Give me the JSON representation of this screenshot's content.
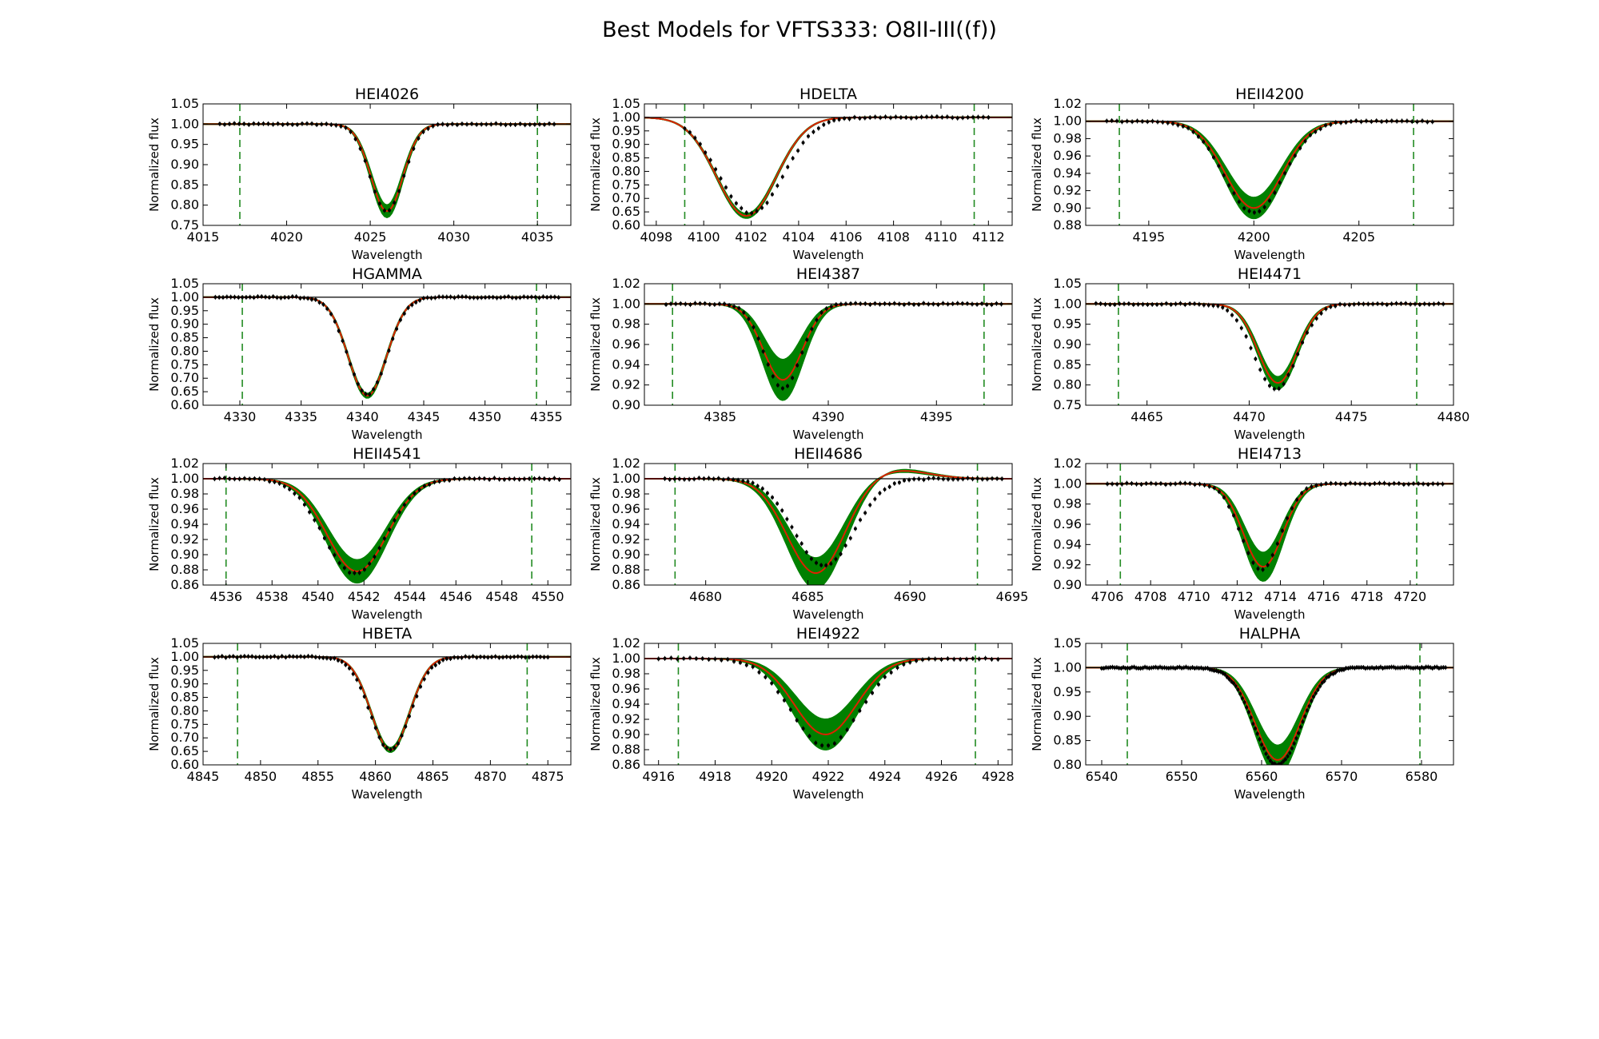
{
  "figure": {
    "title": "Best Models for VFTS333: O8II-III((f))"
  },
  "colors": {
    "data": "#000000",
    "model_band": "#008000",
    "best_model": "#dd2200",
    "window": "#228b22",
    "continuum": "#000000"
  },
  "chart_data": [
    {
      "type": "line",
      "title": "HEI4026",
      "xlabel": "Wavelength",
      "ylabel": "Normalized flux",
      "xlim": [
        4015,
        4037
      ],
      "ylim": [
        0.75,
        1.05
      ],
      "xticks": [
        4015,
        4020,
        4025,
        4030,
        4035
      ],
      "xtick_labels": [
        "4015",
        "4020",
        "4025",
        "4030",
        "4035"
      ],
      "yticks": [
        0.75,
        0.8,
        0.85,
        0.9,
        0.95,
        1.0,
        1.05
      ],
      "ytick_labels": [
        "0.75",
        "0.80",
        "0.85",
        "0.90",
        "0.95",
        "1.00",
        "1.05"
      ],
      "window": [
        4017.2,
        4035.0
      ],
      "line": {
        "center": 4026.0,
        "depth": 0.215,
        "sigma": 0.95,
        "band": 0.015
      },
      "observed": {
        "x_range": [
          4016,
          4036
        ],
        "n": 70,
        "center": 4026.0,
        "depth": 0.215,
        "sigma": 1.0
      }
    },
    {
      "type": "line",
      "title": "HDELTA",
      "xlabel": "Wavelength",
      "ylabel": "Normalized flux",
      "xlim": [
        4097.5,
        4113
      ],
      "ylim": [
        0.6,
        1.05
      ],
      "xticks": [
        4098,
        4100,
        4102,
        4104,
        4106,
        4108,
        4110,
        4112
      ],
      "xtick_labels": [
        "4098",
        "4100",
        "4102",
        "4104",
        "4106",
        "4108",
        "4110",
        "4112"
      ],
      "yticks": [
        0.6,
        0.65,
        0.7,
        0.75,
        0.8,
        0.85,
        0.9,
        0.95,
        1.0,
        1.05
      ],
      "ytick_labels": [
        "0.60",
        "0.65",
        "0.70",
        "0.75",
        "0.80",
        "0.85",
        "0.90",
        "0.95",
        "1.00",
        "1.05"
      ],
      "window": [
        4099.2,
        4111.4
      ],
      "line": {
        "center": 4101.8,
        "depth": 0.365,
        "sigma": 1.25,
        "band": 0.008
      },
      "observed": {
        "x_range": [
          4099.2,
          4112
        ],
        "n": 60,
        "center": 4102.0,
        "depth": 0.355,
        "sigma": 1.35
      }
    },
    {
      "type": "line",
      "title": "HEII4200",
      "xlabel": "Wavelength",
      "ylabel": "Normalized flux",
      "xlim": [
        4192,
        4209.5
      ],
      "ylim": [
        0.88,
        1.02
      ],
      "xticks": [
        4195,
        4200,
        4205
      ],
      "xtick_labels": [
        "4195",
        "4200",
        "4205"
      ],
      "yticks": [
        0.88,
        0.9,
        0.92,
        0.94,
        0.96,
        0.98,
        1.0,
        1.02
      ],
      "ytick_labels": [
        "0.88",
        "0.90",
        "0.92",
        "0.94",
        "0.96",
        "0.98",
        "1.00",
        "1.02"
      ],
      "window": [
        4193.6,
        4207.6
      ],
      "line": {
        "center": 4200.0,
        "depth": 0.1,
        "sigma": 1.35,
        "band": 0.012
      },
      "observed": {
        "x_range": [
          4193,
          4208.5
        ],
        "n": 65,
        "center": 4200.0,
        "depth": 0.105,
        "sigma": 1.4
      }
    },
    {
      "type": "line",
      "title": "HGAMMA",
      "xlabel": "Wavelength",
      "ylabel": "Normalized flux",
      "xlim": [
        4327,
        4357
      ],
      "ylim": [
        0.6,
        1.05
      ],
      "xticks": [
        4330,
        4335,
        4340,
        4345,
        4350,
        4355
      ],
      "xtick_labels": [
        "4330",
        "4335",
        "4340",
        "4345",
        "4350",
        "4355"
      ],
      "yticks": [
        0.6,
        0.65,
        0.7,
        0.75,
        0.8,
        0.85,
        0.9,
        0.95,
        1.0,
        1.05
      ],
      "ytick_labels": [
        "0.60",
        "0.65",
        "0.70",
        "0.75",
        "0.80",
        "0.85",
        "0.90",
        "0.95",
        "1.00",
        "1.05"
      ],
      "window": [
        4330.2,
        4354.2
      ],
      "line": {
        "center": 4340.4,
        "depth": 0.365,
        "sigma": 1.55,
        "band": 0.008
      },
      "observed": {
        "x_range": [
          4328,
          4356
        ],
        "n": 90,
        "center": 4340.4,
        "depth": 0.36,
        "sigma": 1.6
      }
    },
    {
      "type": "line",
      "title": "HEI4387",
      "xlabel": "Wavelength",
      "ylabel": "Normalized flux",
      "xlim": [
        4381.5,
        4398.5
      ],
      "ylim": [
        0.9,
        1.02
      ],
      "xticks": [
        4385,
        4390,
        4395
      ],
      "xtick_labels": [
        "4385",
        "4390",
        "4395"
      ],
      "yticks": [
        0.9,
        0.92,
        0.94,
        0.96,
        0.98,
        1.0,
        1.02
      ],
      "ytick_labels": [
        "0.90",
        "0.92",
        "0.94",
        "0.96",
        "0.98",
        "1.00",
        "1.02"
      ],
      "window": [
        4382.8,
        4397.2
      ],
      "line": {
        "center": 4387.9,
        "depth": 0.075,
        "sigma": 0.9,
        "band": 0.02
      },
      "observed": {
        "x_range": [
          4382.5,
          4398
        ],
        "n": 70,
        "center": 4387.9,
        "depth": 0.083,
        "sigma": 0.85
      }
    },
    {
      "type": "line",
      "title": "HEI4471",
      "xlabel": "Wavelength",
      "ylabel": "Normalized flux",
      "xlim": [
        4462,
        4480
      ],
      "ylim": [
        0.75,
        1.05
      ],
      "xticks": [
        4465,
        4470,
        4475,
        4480
      ],
      "xtick_labels": [
        "4465",
        "4470",
        "4475",
        "4480"
      ],
      "yticks": [
        0.75,
        0.8,
        0.85,
        0.9,
        0.95,
        1.0,
        1.05
      ],
      "ytick_labels": [
        "0.75",
        "0.80",
        "0.85",
        "0.90",
        "0.95",
        "1.00",
        "1.05"
      ],
      "window": [
        4463.6,
        4478.2
      ],
      "line": {
        "center": 4471.4,
        "depth": 0.195,
        "sigma": 0.95,
        "band": 0.015
      },
      "observed": {
        "x_range": [
          4462.5,
          4479.5
        ],
        "n": 75,
        "center": 4471.3,
        "depth": 0.21,
        "sigma": 1.05
      }
    },
    {
      "type": "line",
      "title": "HEII4541",
      "xlabel": "Wavelength",
      "ylabel": "Normalized flux",
      "xlim": [
        4535,
        4551
      ],
      "ylim": [
        0.86,
        1.02
      ],
      "xticks": [
        4536,
        4538,
        4540,
        4542,
        4544,
        4546,
        4548,
        4550
      ],
      "xtick_labels": [
        "4536",
        "4538",
        "4540",
        "4542",
        "4544",
        "4546",
        "4548",
        "4550"
      ],
      "yticks": [
        0.86,
        0.88,
        0.9,
        0.92,
        0.94,
        0.96,
        0.98,
        1.0,
        1.02
      ],
      "ytick_labels": [
        "0.86",
        "0.88",
        "0.90",
        "0.92",
        "0.94",
        "0.96",
        "0.98",
        "1.00",
        "1.02"
      ],
      "window": [
        4536.0,
        4549.3
      ],
      "line": {
        "center": 4541.7,
        "depth": 0.122,
        "sigma": 1.3,
        "band": 0.015
      },
      "observed": {
        "x_range": [
          4535.5,
          4550.5
        ],
        "n": 70,
        "center": 4541.6,
        "depth": 0.125,
        "sigma": 1.35
      }
    },
    {
      "type": "line",
      "title": "HEII4686",
      "xlabel": "Wavelength",
      "ylabel": "Normalized flux",
      "xlim": [
        4677,
        4695
      ],
      "ylim": [
        0.86,
        1.02
      ],
      "xticks": [
        4680,
        4685,
        4690,
        4695
      ],
      "xtick_labels": [
        "4680",
        "4685",
        "4690",
        "4695"
      ],
      "yticks": [
        0.86,
        0.88,
        0.9,
        0.92,
        0.94,
        0.96,
        0.98,
        1.0,
        1.02
      ],
      "ytick_labels": [
        "0.86",
        "0.88",
        "0.90",
        "0.92",
        "0.94",
        "0.96",
        "0.98",
        "1.00",
        "1.02"
      ],
      "window": [
        4678.5,
        4693.3
      ],
      "line": {
        "center": 4685.4,
        "depth": 0.125,
        "sigma": 1.4,
        "band": 0.02,
        "emission": 0.012
      },
      "observed": {
        "x_range": [
          4678,
          4694.5
        ],
        "n": 70,
        "center": 4685.8,
        "depth": 0.115,
        "sigma": 1.45
      }
    },
    {
      "type": "line",
      "title": "HEI4713",
      "xlabel": "Wavelength",
      "ylabel": "Normalized flux",
      "xlim": [
        4705,
        4722
      ],
      "ylim": [
        0.9,
        1.02
      ],
      "xticks": [
        4706,
        4708,
        4710,
        4712,
        4714,
        4716,
        4718,
        4720
      ],
      "xtick_labels": [
        "4706",
        "4708",
        "4710",
        "4712",
        "4714",
        "4716",
        "4718",
        "4720"
      ],
      "yticks": [
        0.9,
        0.92,
        0.94,
        0.96,
        0.98,
        1.0,
        1.02
      ],
      "ytick_labels": [
        "0.90",
        "0.92",
        "0.94",
        "0.96",
        "0.98",
        "1.00",
        "1.02"
      ],
      "window": [
        4706.6,
        4720.3
      ],
      "line": {
        "center": 4713.2,
        "depth": 0.082,
        "sigma": 0.9,
        "band": 0.014
      },
      "observed": {
        "x_range": [
          4706,
          4721.5
        ],
        "n": 70,
        "center": 4713.1,
        "depth": 0.085,
        "sigma": 0.9
      }
    },
    {
      "type": "line",
      "title": "HBETA",
      "xlabel": "Wavelength",
      "ylabel": "Normalized flux",
      "xlim": [
        4845,
        4877
      ],
      "ylim": [
        0.6,
        1.05
      ],
      "xticks": [
        4845,
        4850,
        4855,
        4860,
        4865,
        4870,
        4875
      ],
      "xtick_labels": [
        "4845",
        "4850",
        "4855",
        "4860",
        "4865",
        "4870",
        "4875"
      ],
      "yticks": [
        0.6,
        0.65,
        0.7,
        0.75,
        0.8,
        0.85,
        0.9,
        0.95,
        1.0,
        1.05
      ],
      "ytick_labels": [
        "0.60",
        "0.65",
        "0.70",
        "0.75",
        "0.80",
        "0.85",
        "0.90",
        "0.95",
        "1.00",
        "1.05"
      ],
      "window": [
        4848.0,
        4873.2
      ],
      "line": {
        "center": 4861.3,
        "depth": 0.345,
        "sigma": 1.65,
        "band": 0.008
      },
      "observed": {
        "x_range": [
          4846,
          4875
        ],
        "n": 90,
        "center": 4861.3,
        "depth": 0.345,
        "sigma": 1.75
      }
    },
    {
      "type": "line",
      "title": "HEI4922",
      "xlabel": "Wavelength",
      "ylabel": "Normalized flux",
      "xlim": [
        4915.5,
        4928.5
      ],
      "ylim": [
        0.86,
        1.02
      ],
      "xticks": [
        4916,
        4918,
        4920,
        4922,
        4924,
        4926,
        4928
      ],
      "xtick_labels": [
        "4916",
        "4918",
        "4920",
        "4922",
        "4924",
        "4926",
        "4928"
      ],
      "yticks": [
        0.86,
        0.88,
        0.9,
        0.92,
        0.94,
        0.96,
        0.98,
        1.0,
        1.02
      ],
      "ytick_labels": [
        "0.86",
        "0.88",
        "0.90",
        "0.92",
        "0.94",
        "0.96",
        "0.98",
        "1.00",
        "1.02"
      ],
      "window": [
        4916.7,
        4927.2
      ],
      "line": {
        "center": 4921.9,
        "depth": 0.1,
        "sigma": 1.1,
        "band": 0.02
      },
      "observed": {
        "x_range": [
          4916,
          4928
        ],
        "n": 55,
        "center": 4921.9,
        "depth": 0.115,
        "sigma": 1.2
      }
    },
    {
      "type": "line",
      "title": "HALPHA",
      "xlabel": "Wavelength",
      "ylabel": "Normalized flux",
      "xlim": [
        6538,
        6584
      ],
      "ylim": [
        0.8,
        1.05
      ],
      "xticks": [
        6540,
        6550,
        6560,
        6570,
        6580
      ],
      "xtick_labels": [
        "6540",
        "6550",
        "6560",
        "6570",
        "6580"
      ],
      "yticks": [
        0.8,
        0.85,
        0.9,
        0.95,
        1.0,
        1.05
      ],
      "ytick_labels": [
        "0.80",
        "0.85",
        "0.90",
        "0.95",
        "1.00",
        "1.05"
      ],
      "window": [
        6543.2,
        6579.8
      ],
      "line": {
        "center": 6562.0,
        "depth": 0.19,
        "sigma": 2.8,
        "band": 0.03
      },
      "observed": {
        "x_range": [
          6540,
          6583
        ],
        "n": 160,
        "center": 6562.0,
        "depth": 0.2,
        "sigma": 2.9
      }
    }
  ]
}
